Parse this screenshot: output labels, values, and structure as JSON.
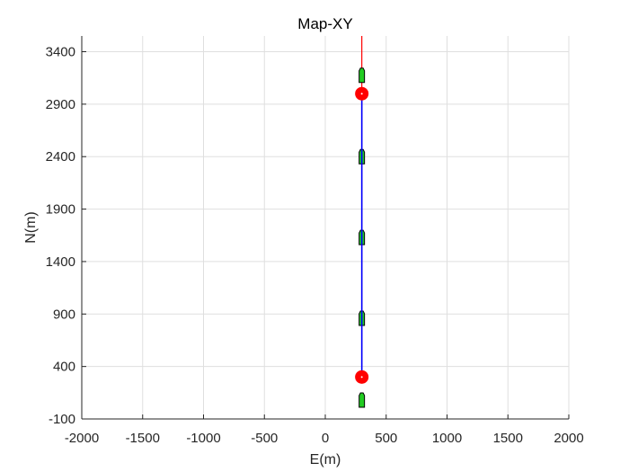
{
  "chart_data": {
    "type": "line",
    "title": "Map-XY",
    "xlabel": "E(m)",
    "ylabel": "N(m)",
    "xlim": [
      -2000,
      2000
    ],
    "ylim": [
      -100,
      3550
    ],
    "xticks": [
      -2000,
      -1500,
      -1000,
      -500,
      0,
      500,
      1000,
      1500,
      2000
    ],
    "xtick_labels": [
      "-2000",
      "-1500",
      "-1000",
      "-500",
      "0",
      "500",
      "1000",
      "1500",
      "2000"
    ],
    "yticks": [
      -100,
      400,
      900,
      1400,
      1900,
      2400,
      2900,
      3400
    ],
    "ytick_labels": [
      "-100",
      "400",
      "900",
      "1400",
      "1900",
      "2400",
      "2900",
      "3400"
    ],
    "grid": true,
    "reference_line": {
      "color": "#ff0000",
      "x": [
        300,
        300
      ],
      "y": [
        300,
        3550
      ]
    },
    "trajectory": {
      "color": "#0000ff",
      "x": [
        300,
        300
      ],
      "y": [
        300,
        3000
      ]
    },
    "waypoints": {
      "color": "#ff0000",
      "x": [
        300,
        300
      ],
      "y": [
        300,
        3000
      ]
    },
    "vessels": {
      "fill": "#22cc22",
      "edge": "#000000",
      "x": [
        300,
        300,
        300,
        300,
        300
      ],
      "y": [
        80,
        860,
        1630,
        2400,
        3175
      ]
    }
  }
}
